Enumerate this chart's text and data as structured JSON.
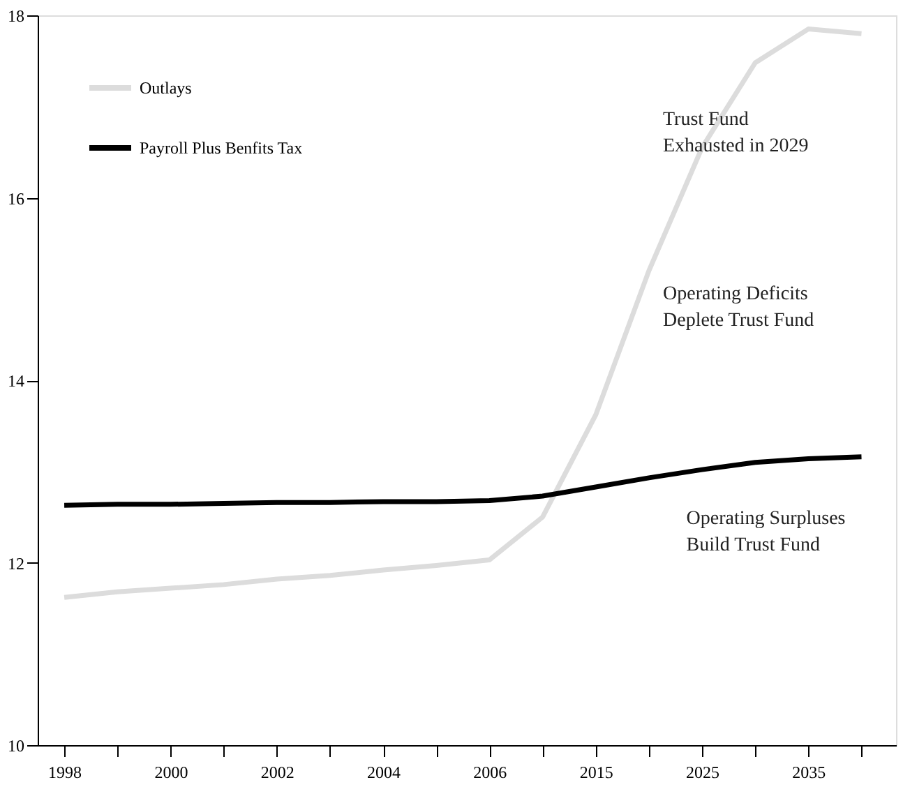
{
  "chart_data": {
    "type": "line",
    "categories": [
      "1998",
      null,
      "2000",
      null,
      "2002",
      null,
      "2004",
      null,
      "2006",
      null,
      "2015",
      null,
      "2025",
      null,
      "2035",
      null
    ],
    "series": [
      {
        "name": "Outlays",
        "color": "#dcdcdc",
        "values": [
          11.62,
          11.68,
          11.72,
          11.76,
          11.82,
          11.86,
          11.92,
          11.97,
          12.03,
          12.5,
          13.62,
          15.2,
          16.55,
          17.48,
          17.85,
          17.8
        ]
      },
      {
        "name": "Payroll Plus Benfits Tax",
        "color": "#000000",
        "values": [
          12.63,
          12.64,
          12.64,
          12.65,
          12.66,
          12.66,
          12.67,
          12.67,
          12.68,
          12.73,
          12.83,
          12.93,
          13.02,
          13.1,
          13.14,
          13.16
        ]
      }
    ],
    "ylim": [
      10,
      18
    ],
    "yticks": [
      10,
      12,
      14,
      16,
      18
    ],
    "annotations": [
      "Trust Fund\nExhausted in 2029",
      "Operating  Deficits\nDeplete Trust Fund",
      "Operating Surpluses\nBuild Trust Fund"
    ],
    "grid": false,
    "legend": "top left",
    "marker": "none",
    "line_style": "solid"
  }
}
